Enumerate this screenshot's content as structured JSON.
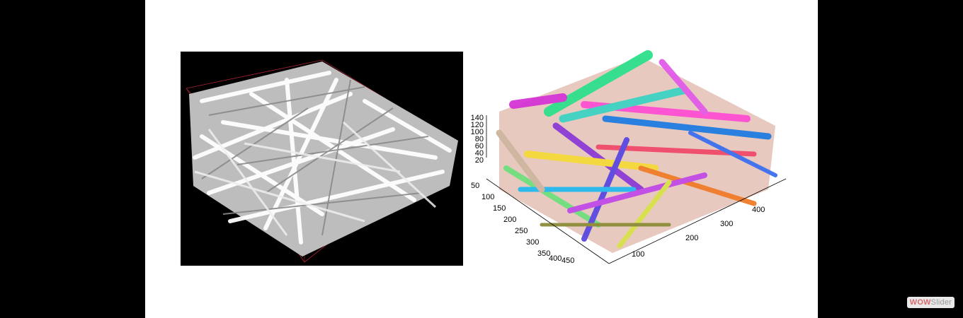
{
  "left_image": {
    "icon": "fiber-network-render-grayscale"
  },
  "right_image": {
    "icon": "fiber-network-render-colored",
    "z_ticks": [
      "140",
      "120",
      "100",
      "80",
      "60",
      "40",
      "20"
    ],
    "y_ticks": [
      "50",
      "100",
      "150",
      "200",
      "250",
      "300",
      "350",
      "400",
      "450"
    ],
    "x_ticks": [
      "100",
      "200",
      "300",
      "400"
    ]
  },
  "watermark": {
    "part1": "WOW",
    "part2": "Slider"
  }
}
